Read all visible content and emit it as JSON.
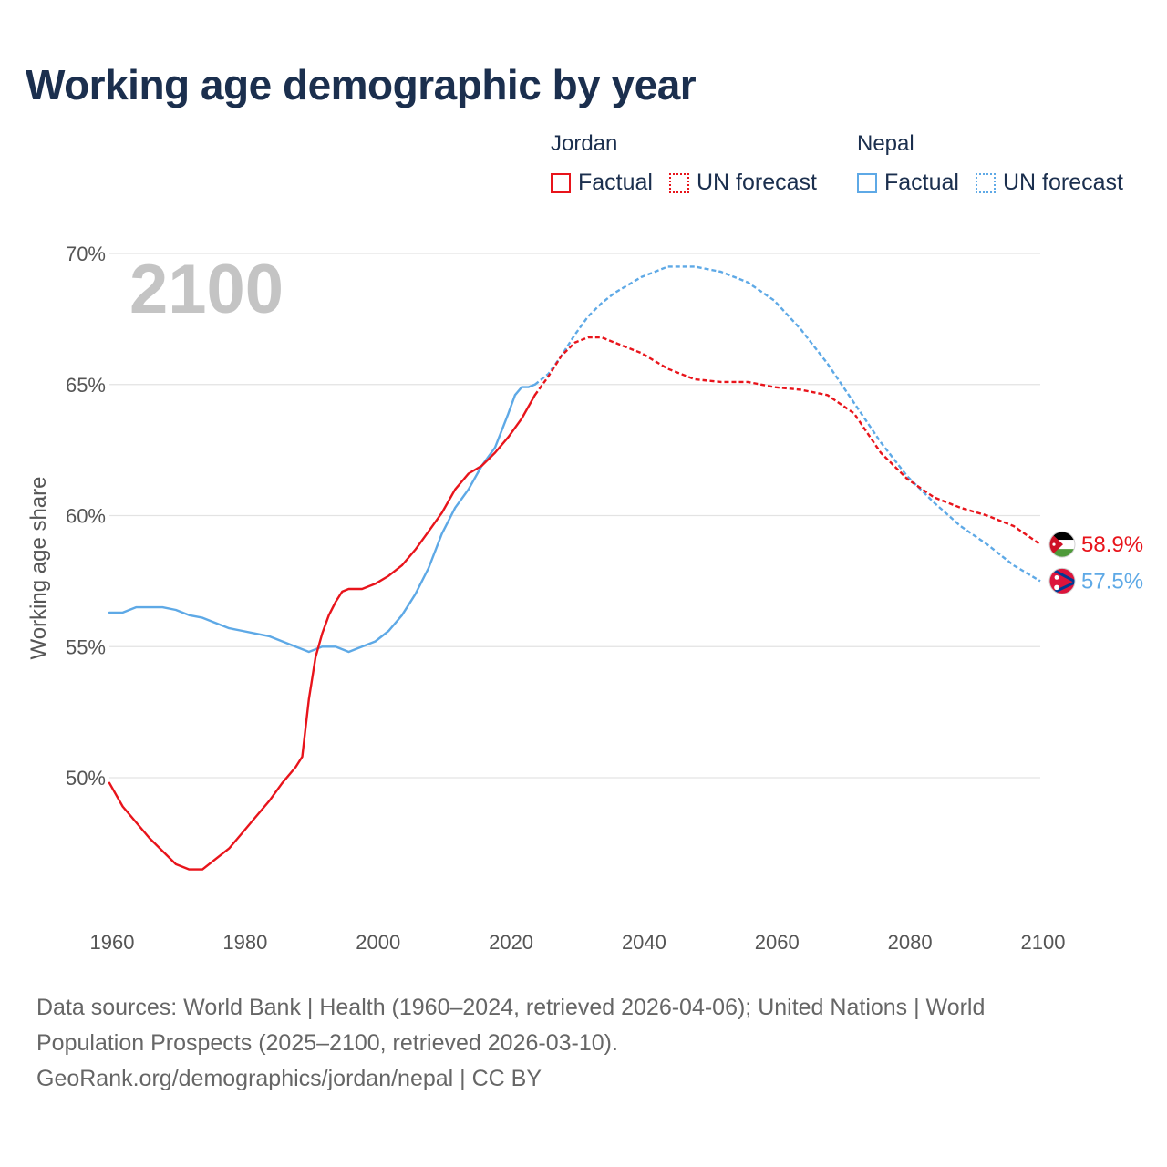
{
  "title": "Working age demographic by year",
  "colors": {
    "jordan": "#e8141b",
    "nepal": "#5ea9e6",
    "grid": "#e3e3e3",
    "text": "#1b2f4e"
  },
  "legend": {
    "jordan": {
      "name": "Jordan",
      "factual": "Factual",
      "forecast": "UN forecast"
    },
    "nepal": {
      "name": "Nepal",
      "factual": "Factual",
      "forecast": "UN forecast"
    }
  },
  "footer": {
    "line1": "Data sources: World Bank | Health (1960–2024, retrieved 2026-04-06); United Nations | World",
    "line2": "Population Prospects (2025–2100, retrieved 2026-03-10).",
    "line3": "GeoRank.org/demographics/jordan/nepal | CC BY"
  },
  "chart_data": {
    "type": "line",
    "title": "Working age demographic by year",
    "year_display": "2100",
    "ylabel": "Working age share",
    "xlabel": "",
    "xlim": [
      1960,
      2100
    ],
    "ylim": [
      45.2,
      70
    ],
    "x_ticks": [
      1960,
      1980,
      2000,
      2020,
      2040,
      2060,
      2080,
      2100
    ],
    "y_ticks": [
      50,
      55,
      60,
      65,
      70
    ],
    "y_tick_labels": [
      "50%",
      "55%",
      "60%",
      "65%",
      "70%"
    ],
    "series": [
      {
        "name": "Jordan",
        "kind": "factual",
        "color": "#e8141b",
        "points": [
          [
            1960,
            49.8
          ],
          [
            1962,
            48.9
          ],
          [
            1964,
            48.3
          ],
          [
            1966,
            47.7
          ],
          [
            1968,
            47.2
          ],
          [
            1970,
            46.7
          ],
          [
            1972,
            46.5
          ],
          [
            1974,
            46.5
          ],
          [
            1976,
            46.9
          ],
          [
            1978,
            47.3
          ],
          [
            1980,
            47.9
          ],
          [
            1982,
            48.5
          ],
          [
            1984,
            49.1
          ],
          [
            1986,
            49.8
          ],
          [
            1988,
            50.4
          ],
          [
            1989,
            50.8
          ],
          [
            1990,
            53.0
          ],
          [
            1991,
            54.6
          ],
          [
            1992,
            55.5
          ],
          [
            1993,
            56.2
          ],
          [
            1994,
            56.7
          ],
          [
            1995,
            57.1
          ],
          [
            1996,
            57.2
          ],
          [
            1998,
            57.2
          ],
          [
            2000,
            57.4
          ],
          [
            2002,
            57.7
          ],
          [
            2004,
            58.1
          ],
          [
            2006,
            58.7
          ],
          [
            2008,
            59.4
          ],
          [
            2010,
            60.1
          ],
          [
            2012,
            61.0
          ],
          [
            2014,
            61.6
          ],
          [
            2016,
            61.9
          ],
          [
            2018,
            62.4
          ],
          [
            2020,
            63.0
          ],
          [
            2022,
            63.7
          ],
          [
            2024,
            64.6
          ]
        ],
        "end_label": ""
      },
      {
        "name": "Jordan",
        "kind": "forecast",
        "color": "#e8141b",
        "points": [
          [
            2024,
            64.6
          ],
          [
            2026,
            65.3
          ],
          [
            2028,
            66.1
          ],
          [
            2030,
            66.6
          ],
          [
            2032,
            66.8
          ],
          [
            2034,
            66.8
          ],
          [
            2036,
            66.6
          ],
          [
            2040,
            66.2
          ],
          [
            2044,
            65.6
          ],
          [
            2048,
            65.2
          ],
          [
            2052,
            65.1
          ],
          [
            2056,
            65.1
          ],
          [
            2060,
            64.9
          ],
          [
            2064,
            64.8
          ],
          [
            2068,
            64.6
          ],
          [
            2072,
            63.9
          ],
          [
            2076,
            62.4
          ],
          [
            2080,
            61.4
          ],
          [
            2084,
            60.7
          ],
          [
            2088,
            60.3
          ],
          [
            2092,
            60.0
          ],
          [
            2096,
            59.6
          ],
          [
            2100,
            58.9
          ]
        ],
        "end_label": "58.9%"
      },
      {
        "name": "Nepal",
        "kind": "factual",
        "color": "#5ea9e6",
        "points": [
          [
            1960,
            56.3
          ],
          [
            1962,
            56.3
          ],
          [
            1964,
            56.5
          ],
          [
            1966,
            56.5
          ],
          [
            1968,
            56.5
          ],
          [
            1970,
            56.4
          ],
          [
            1972,
            56.2
          ],
          [
            1974,
            56.1
          ],
          [
            1976,
            55.9
          ],
          [
            1978,
            55.7
          ],
          [
            1980,
            55.6
          ],
          [
            1982,
            55.5
          ],
          [
            1984,
            55.4
          ],
          [
            1986,
            55.2
          ],
          [
            1988,
            55.0
          ],
          [
            1990,
            54.8
          ],
          [
            1992,
            55.0
          ],
          [
            1994,
            55.0
          ],
          [
            1996,
            54.8
          ],
          [
            1998,
            55.0
          ],
          [
            2000,
            55.2
          ],
          [
            2002,
            55.6
          ],
          [
            2004,
            56.2
          ],
          [
            2006,
            57.0
          ],
          [
            2008,
            58.0
          ],
          [
            2010,
            59.3
          ],
          [
            2012,
            60.3
          ],
          [
            2014,
            61.0
          ],
          [
            2016,
            61.9
          ],
          [
            2018,
            62.6
          ],
          [
            2020,
            63.9
          ],
          [
            2021,
            64.6
          ],
          [
            2022,
            64.9
          ],
          [
            2023,
            64.9
          ],
          [
            2024,
            65.0
          ]
        ],
        "end_label": ""
      },
      {
        "name": "Nepal",
        "kind": "forecast",
        "color": "#5ea9e6",
        "points": [
          [
            2024,
            65.0
          ],
          [
            2026,
            65.4
          ],
          [
            2028,
            66.1
          ],
          [
            2030,
            66.9
          ],
          [
            2032,
            67.6
          ],
          [
            2034,
            68.1
          ],
          [
            2036,
            68.5
          ],
          [
            2040,
            69.1
          ],
          [
            2044,
            69.5
          ],
          [
            2048,
            69.5
          ],
          [
            2052,
            69.3
          ],
          [
            2056,
            68.9
          ],
          [
            2060,
            68.2
          ],
          [
            2064,
            67.1
          ],
          [
            2068,
            65.8
          ],
          [
            2072,
            64.3
          ],
          [
            2076,
            62.8
          ],
          [
            2080,
            61.5
          ],
          [
            2084,
            60.5
          ],
          [
            2088,
            59.6
          ],
          [
            2092,
            58.9
          ],
          [
            2096,
            58.1
          ],
          [
            2100,
            57.5
          ]
        ],
        "end_label": "57.5%"
      }
    ]
  }
}
